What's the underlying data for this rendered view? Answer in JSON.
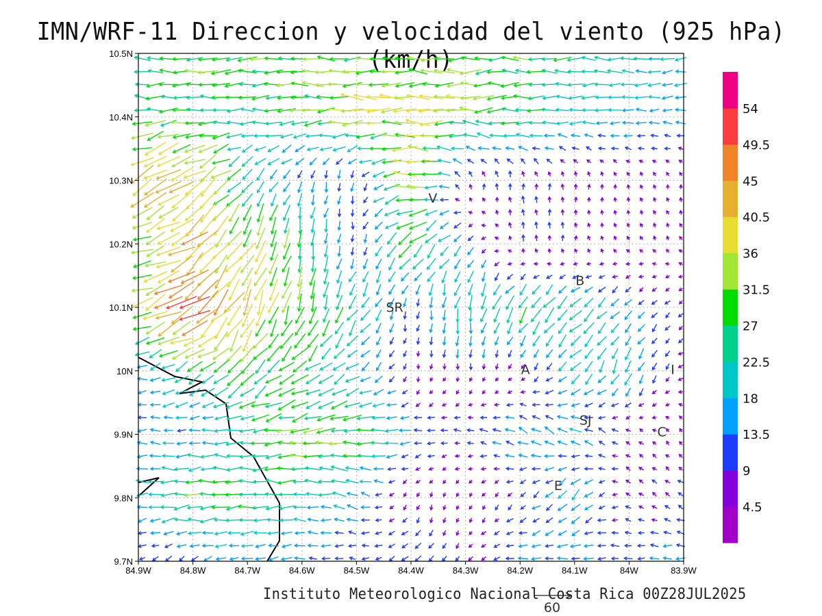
{
  "title": "IMN/WRF-11 Direccion y velocidad del viento (925 hPa)(km/h)",
  "footer": "Instituto Meteorologico Nacional Costa Rica 00Z28JUL2025",
  "reference_vector": {
    "value": 60,
    "label": "60"
  },
  "chart_data": {
    "type": "vector-field",
    "units": "km/h",
    "level": "925 hPa",
    "x_ticks": [
      "84.9W",
      "84.8W",
      "84.7W",
      "84.6W",
      "84.5W",
      "84.4W",
      "84.3W",
      "84.2W",
      "84.1W",
      "84W",
      "83.9W"
    ],
    "y_ticks": [
      "10.5N",
      "10.4N",
      "10.3N",
      "10.2N",
      "10.1N",
      "10N",
      "9.9N",
      "9.8N",
      "9.7N"
    ],
    "lon_range": [
      -84.9,
      -83.9
    ],
    "lat_range": [
      9.7,
      10.5
    ],
    "grid_note": "coarse field: rows lat 10.5..9.7, cols lon -84.9..-83.9; each [direction_deg_toward (0=E,90=N), speed_kmh]",
    "field": [
      [
        [
          180,
          22
        ],
        [
          180,
          28
        ],
        [
          180,
          30
        ],
        [
          180,
          30
        ],
        [
          180,
          30
        ],
        [
          180,
          30
        ],
        [
          180,
          30
        ],
        [
          180,
          28
        ],
        [
          180,
          25
        ],
        [
          180,
          22
        ],
        [
          180,
          20
        ]
      ],
      [
        [
          180,
          28
        ],
        [
          185,
          30
        ],
        [
          180,
          22
        ],
        [
          180,
          30
        ],
        [
          180,
          36
        ],
        [
          180,
          37
        ],
        [
          180,
          33
        ],
        [
          180,
          28
        ],
        [
          180,
          20
        ],
        [
          180,
          18
        ],
        [
          185,
          15
        ]
      ],
      [
        [
          210,
          45
        ],
        [
          210,
          40
        ],
        [
          225,
          25
        ],
        [
          260,
          15
        ],
        [
          265,
          12
        ],
        [
          180,
          38
        ],
        [
          90,
          10
        ],
        [
          90,
          10
        ],
        [
          90,
          8
        ],
        [
          100,
          5
        ],
        [
          100,
          5
        ]
      ],
      [
        [
          190,
          30
        ],
        [
          220,
          42
        ],
        [
          240,
          35
        ],
        [
          260,
          28
        ],
        [
          265,
          10
        ],
        [
          225,
          30
        ],
        [
          220,
          15
        ],
        [
          90,
          10
        ],
        [
          90,
          8
        ],
        [
          120,
          5
        ],
        [
          120,
          5
        ]
      ],
      [
        [
          200,
          35
        ],
        [
          210,
          52
        ],
        [
          250,
          40
        ],
        [
          255,
          30
        ],
        [
          240,
          25
        ],
        [
          265,
          10
        ],
        [
          265,
          25
        ],
        [
          235,
          28
        ],
        [
          225,
          25
        ],
        [
          225,
          15
        ],
        [
          220,
          8
        ]
      ],
      [
        [
          185,
          15
        ],
        [
          210,
          25
        ],
        [
          225,
          30
        ],
        [
          220,
          28
        ],
        [
          215,
          20
        ],
        [
          265,
          8
        ],
        [
          265,
          8
        ],
        [
          240,
          6
        ],
        [
          225,
          20
        ],
        [
          250,
          22
        ],
        [
          200,
          8
        ]
      ],
      [
        [
          180,
          15
        ],
        [
          180,
          15
        ],
        [
          182,
          25
        ],
        [
          185,
          32
        ],
        [
          182,
          30
        ],
        [
          180,
          15
        ],
        [
          175,
          10
        ],
        [
          160,
          18
        ],
        [
          150,
          18
        ],
        [
          150,
          8
        ],
        [
          120,
          6
        ]
      ],
      [
        [
          180,
          18
        ],
        [
          180,
          30
        ],
        [
          180,
          28
        ],
        [
          180,
          22
        ],
        [
          160,
          18
        ],
        [
          260,
          8
        ],
        [
          250,
          6
        ],
        [
          220,
          10
        ],
        [
          230,
          20
        ],
        [
          150,
          8
        ],
        [
          150,
          10
        ]
      ],
      [
        [
          210,
          10
        ],
        [
          215,
          12
        ],
        [
          190,
          15
        ],
        [
          185,
          15
        ],
        [
          180,
          10
        ],
        [
          225,
          15
        ],
        [
          240,
          8
        ],
        [
          185,
          15
        ],
        [
          180,
          15
        ],
        [
          180,
          12
        ],
        [
          180,
          15
        ]
      ]
    ],
    "colorbar": {
      "bins": [
        0,
        4.5,
        9,
        13.5,
        18,
        22.5,
        27,
        31.5,
        36,
        40.5,
        45,
        49.5,
        54
      ],
      "labels": [
        "4.5",
        "9",
        "13.5",
        "18",
        "22.5",
        "27",
        "31.5",
        "36",
        "40.5",
        "45",
        "49.5",
        "54"
      ],
      "colors": [
        "#a000c8",
        "#8200dc",
        "#1e3cff",
        "#00a0ff",
        "#00c8c8",
        "#00d28c",
        "#00dc00",
        "#a0e632",
        "#e6dc32",
        "#e6af2d",
        "#f08228",
        "#fa3c3c",
        "#f00082"
      ]
    },
    "places": [
      {
        "label": "V",
        "lon": -84.36,
        "lat": 10.265
      },
      {
        "label": "SR",
        "lon": -84.43,
        "lat": 10.093
      },
      {
        "label": "B",
        "lon": -84.09,
        "lat": 10.135
      },
      {
        "label": "A",
        "lon": -84.19,
        "lat": 9.995
      },
      {
        "label": "I",
        "lon": -83.92,
        "lat": 9.995
      },
      {
        "label": "SJ",
        "lon": -84.08,
        "lat": 9.915
      },
      {
        "label": "C",
        "lon": -83.94,
        "lat": 9.897
      },
      {
        "label": "E",
        "lon": -84.13,
        "lat": 9.812
      }
    ]
  }
}
